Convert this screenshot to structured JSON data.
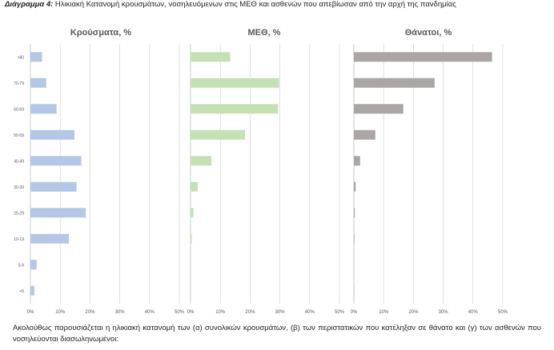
{
  "caption": {
    "label": "Διάγραμμα 4:",
    "text": "Ηλικιακή Κατανομή κρουσμάτων, νοσηλευόμενων στις ΜΕΘ και ασθενών που απεβίωσαν από την αρχή της πανδημίας"
  },
  "footer_text": "Ακολούθως παρουσιάζεται η ηλικιακή κατανομή των (α) συνολικών κρουσμάτων, (β) των περιστατικών που κατέληξαν σε θάνατο και (γ) των ασθενών που νοσηλεύονται διασωληνωμένοι:",
  "colors": {
    "cases": "#b4c7e7",
    "icu": "#c5e0b4",
    "deaths": "#aba5a5",
    "grid": "#d9d9d9",
    "axis": "#bfbfbf"
  },
  "chart_data": [
    {
      "type": "bar",
      "orientation": "horizontal",
      "title": "Κρούσματα, %",
      "categories": [
        ">80",
        "70-79",
        "60-69",
        "50-59",
        "40-49",
        "30-39",
        "20-29",
        "10-19",
        "5-9",
        "<5"
      ],
      "values": [
        3.9,
        5.3,
        8.8,
        14.8,
        17.1,
        15.5,
        18.6,
        12.9,
        2.1,
        1.3
      ],
      "xlim": [
        0,
        50
      ],
      "ticks": [
        "0%",
        "10%",
        "20%",
        "30%",
        "40%",
        "50%"
      ],
      "grid": true
    },
    {
      "type": "bar",
      "orientation": "horizontal",
      "title": "ΜΕΘ, %",
      "categories": [
        ">80",
        "70-79",
        "60-69",
        "50-59",
        "40-49",
        "30-39",
        "20-29",
        "10-19",
        "5-9",
        "<5"
      ],
      "values": [
        13.3,
        29.7,
        29.4,
        18.3,
        7.0,
        2.4,
        1.0,
        0.4,
        0,
        0
      ],
      "xlim": [
        0,
        50
      ],
      "ticks": [
        "0%",
        "10%",
        "20%",
        "30%",
        "40%",
        "50%"
      ],
      "grid": true
    },
    {
      "type": "bar",
      "orientation": "horizontal",
      "title": "Θάνατοι, %",
      "categories": [
        ">80",
        "70-79",
        "60-69",
        "50-59",
        "40-49",
        "30-39",
        "20-29",
        "10-19",
        "5-9",
        "<5"
      ],
      "values": [
        46.4,
        27.1,
        16.6,
        7.2,
        2.1,
        0.6,
        0.3,
        0.2,
        0,
        0.1
      ],
      "xlim": [
        0,
        50
      ],
      "ticks": [
        "0%",
        "10%",
        "20%",
        "30%",
        "40%",
        "50%"
      ],
      "grid": true
    }
  ]
}
